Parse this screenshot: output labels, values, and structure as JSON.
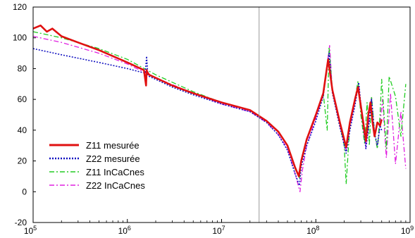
{
  "chart_data": {
    "type": "line",
    "title": "",
    "xlabel": "",
    "ylabel": "",
    "xscale": "log",
    "xlim": [
      100000,
      1000000000
    ],
    "ylim": [
      -20,
      120
    ],
    "grid": false,
    "legend_position": "bottom-left",
    "x_tick_labels": [
      {
        "base": "10",
        "exp": "5"
      },
      {
        "base": "10",
        "exp": "6"
      },
      {
        "base": "10",
        "exp": "7"
      },
      {
        "base": "10",
        "exp": "8"
      },
      {
        "base": "10",
        "exp": "9"
      }
    ],
    "y_tick_labels": [
      "-20",
      "0",
      "20",
      "40",
      "60",
      "80",
      "100",
      "120"
    ],
    "y_tick_values": [
      -20,
      0,
      20,
      40,
      60,
      80,
      100,
      120
    ],
    "reference_line_x": 25000000,
    "series": [
      {
        "name": "Z11 mesurée",
        "color": "#e01010",
        "style": "solid",
        "x": [
          100000,
          120000,
          140000,
          160000,
          200000,
          300000,
          500000,
          1000000,
          1500000,
          1580000,
          1600000,
          1620000,
          1700000,
          2000000,
          3000000,
          5000000,
          10000000,
          20000000,
          30000000,
          40000000,
          50000000,
          60000000,
          66000000,
          70000000,
          80000000,
          100000000,
          120000000,
          135000000,
          150000000,
          180000000,
          210000000,
          230000000,
          260000000,
          280000000,
          310000000,
          340000000,
          360000000,
          380000000,
          400000000,
          420000000,
          450000000,
          480000000,
          500000000
        ],
        "y": [
          106,
          108,
          104,
          106,
          101,
          97,
          92,
          84,
          79,
          69,
          79,
          78,
          76,
          74,
          69,
          64,
          58,
          53,
          46,
          39,
          30,
          16,
          10,
          20,
          34,
          50,
          64,
          86,
          66,
          45,
          29,
          45,
          60,
          68,
          50,
          33,
          50,
          58,
          45,
          36,
          45,
          43,
          47
        ]
      },
      {
        "name": "Z22 mesurée",
        "color": "#1010c0",
        "style": "dotted",
        "x": [
          100000,
          200000,
          500000,
          1000000,
          1550000,
          1600000,
          1650000,
          1700000,
          2000000,
          3000000,
          5000000,
          10000000,
          20000000,
          30000000,
          40000000,
          50000000,
          60000000,
          67000000,
          70000000,
          80000000,
          100000000,
          120000000,
          138000000,
          150000000,
          180000000,
          210000000,
          230000000,
          260000000,
          285000000,
          310000000,
          340000000,
          370000000,
          390000000,
          420000000,
          450000000,
          480000000,
          500000000
        ],
        "y": [
          93,
          89,
          84,
          80,
          77,
          88,
          76,
          75,
          73,
          68,
          63,
          57,
          52,
          45,
          37,
          27,
          12,
          4,
          16,
          30,
          46,
          62,
          90,
          64,
          42,
          25,
          40,
          56,
          71,
          48,
          28,
          46,
          60,
          38,
          30,
          43,
          40
        ]
      },
      {
        "name": "Z11 InCaCnes",
        "color": "#22cc22",
        "style": "dash-dot",
        "x": [
          100000,
          200000,
          500000,
          1000000,
          2000000,
          5000000,
          10000000,
          20000000,
          30000000,
          40000000,
          50000000,
          60000000,
          67000000,
          70000000,
          80000000,
          100000000,
          120000000,
          132000000,
          138000000,
          150000000,
          180000000,
          200000000,
          210000000,
          230000000,
          260000000,
          280000000,
          300000000,
          330000000,
          350000000,
          370000000,
          390000000,
          420000000,
          450000000,
          480000000,
          500000000,
          560000000,
          600000000,
          700000000,
          800000000,
          900000000
        ],
        "y": [
          104,
          100,
          93,
          86,
          76,
          65,
          58,
          53,
          46,
          39,
          30,
          15,
          9,
          19,
          33,
          50,
          64,
          40,
          94,
          66,
          44,
          30,
          5,
          44,
          60,
          72,
          50,
          31,
          58,
          30,
          62,
          38,
          28,
          50,
          73,
          28,
          75,
          62,
          36,
          70
        ]
      },
      {
        "name": "Z22 InCaCnes",
        "color": "#e020e0",
        "style": "dash-dot",
        "x": [
          100000,
          200000,
          500000,
          1000000,
          2000000,
          5000000,
          10000000,
          20000000,
          30000000,
          40000000,
          50000000,
          60000000,
          68000000,
          72000000,
          80000000,
          100000000,
          120000000,
          140000000,
          150000000,
          180000000,
          210000000,
          230000000,
          260000000,
          285000000,
          310000000,
          340000000,
          370000000,
          390000000,
          420000000,
          450000000,
          480000000,
          510000000,
          560000000,
          620000000,
          700000000,
          800000000,
          900000000
        ],
        "y": [
          101,
          97,
          90,
          83,
          74,
          64,
          57,
          52,
          45,
          37,
          28,
          12,
          0,
          14,
          30,
          48,
          63,
          95,
          65,
          43,
          27,
          42,
          58,
          70,
          47,
          29,
          48,
          62,
          38,
          28,
          44,
          60,
          22,
          64,
          18,
          52,
          15
        ]
      }
    ]
  }
}
